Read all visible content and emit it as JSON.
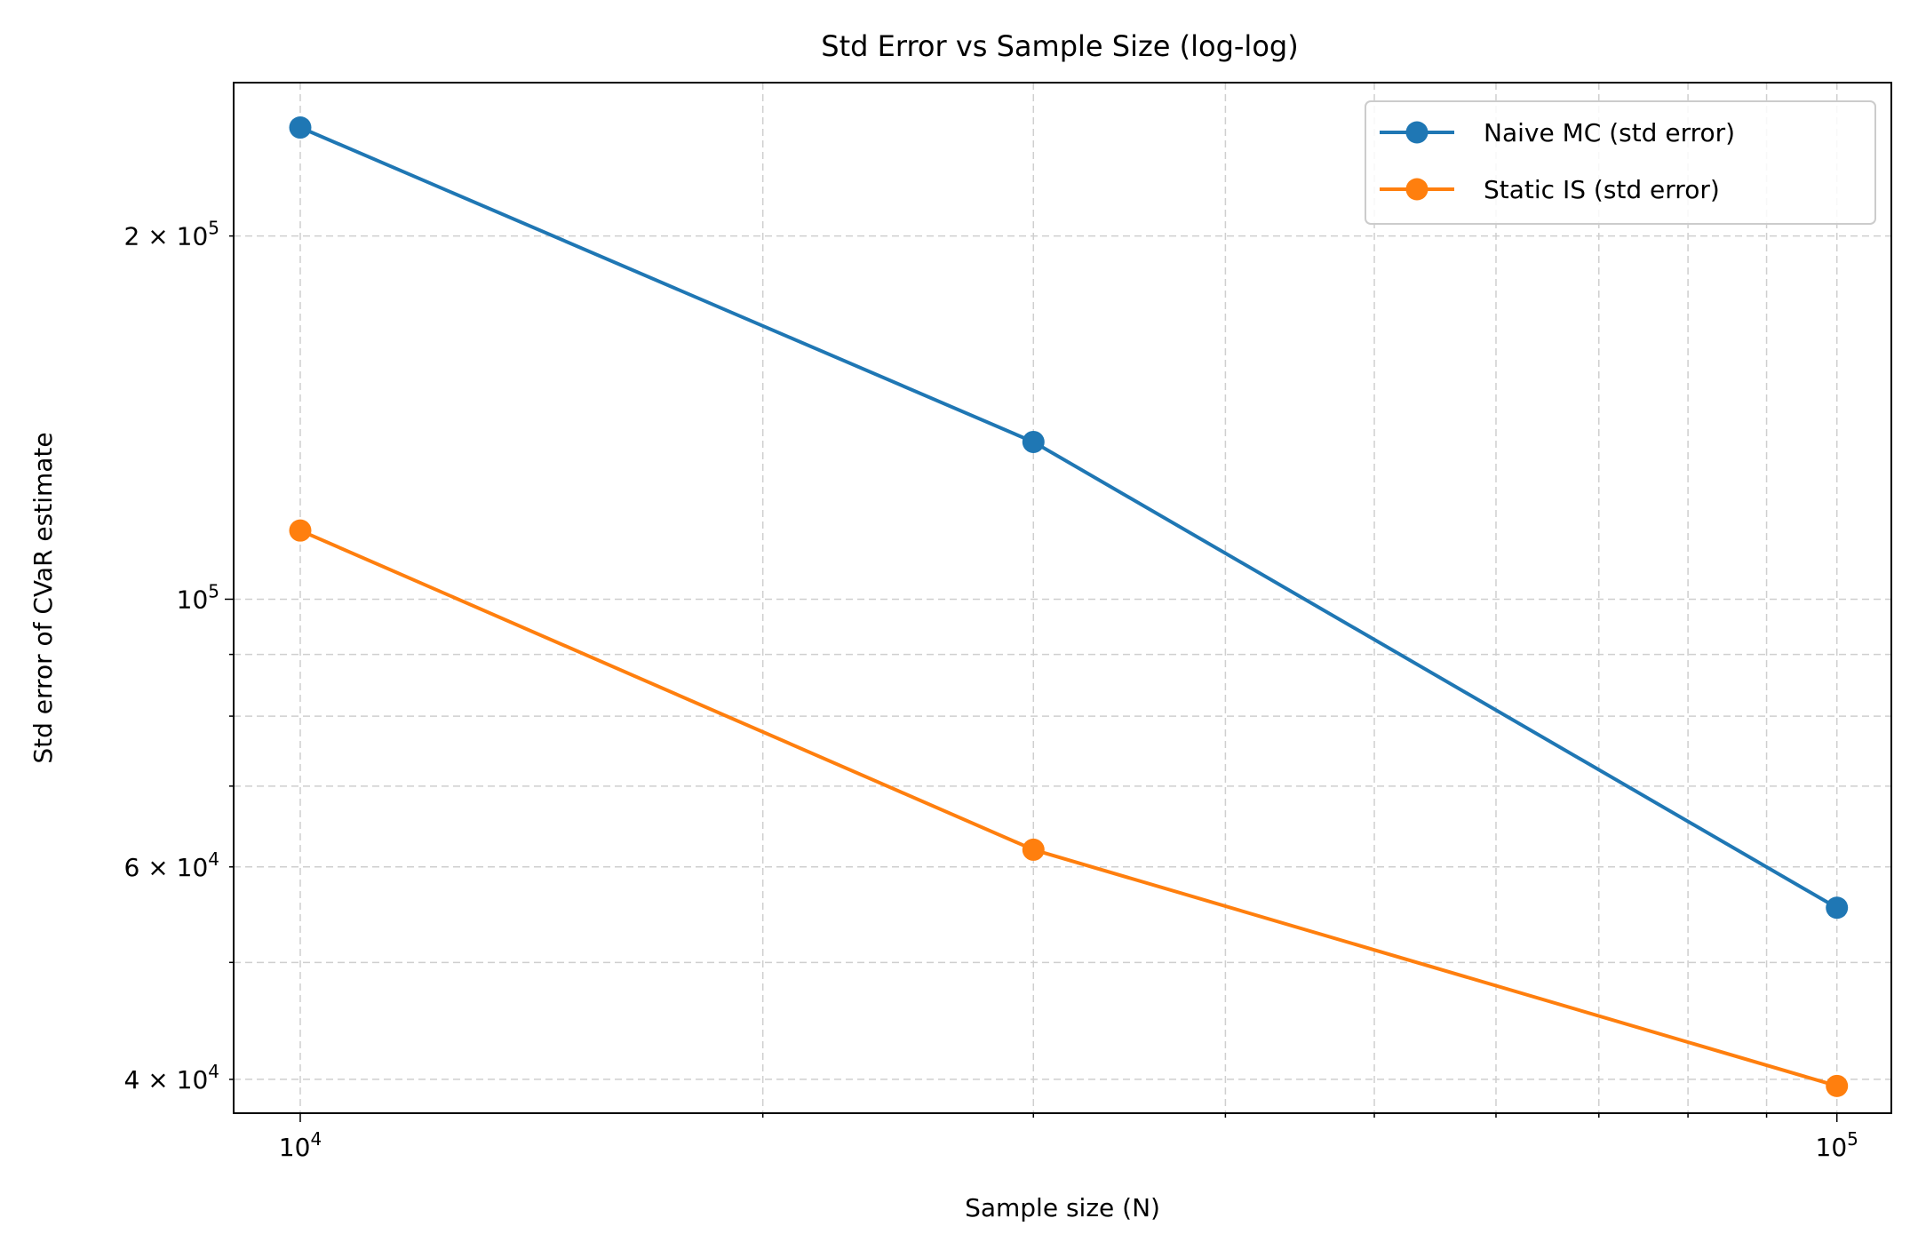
{
  "chart_data": {
    "type": "line",
    "title": "Std Error vs Sample Size (log-log)",
    "xlabel": "Sample size (N)",
    "ylabel": "Std error of CVaR estimate",
    "xscale": "log",
    "yscale": "log",
    "xlim": [
      9050,
      108500
    ],
    "ylim": [
      37500,
      268000
    ],
    "grid": true,
    "legend_position": "top-right",
    "x_ticks": [
      {
        "value": 10000,
        "base": "10",
        "exp": "4"
      },
      {
        "value": 100000,
        "base": "10",
        "exp": "5"
      }
    ],
    "y_ticks": [
      {
        "value": 40000,
        "base": "4 × 10",
        "exp": "4"
      },
      {
        "value": 60000,
        "base": "6 × 10",
        "exp": "4"
      },
      {
        "value": 100000,
        "base": "10",
        "exp": "5"
      },
      {
        "value": 200000,
        "base": "2 × 10",
        "exp": "5"
      }
    ],
    "x": [
      10000,
      30000,
      100000
    ],
    "series": [
      {
        "name": "Naive MC (std error)",
        "color": "#1f77b4",
        "values": [
          246000,
          135000,
          55500
        ]
      },
      {
        "name": "Static IS (std error)",
        "color": "#ff7f0e",
        "values": [
          114000,
          62000,
          39500
        ]
      }
    ]
  }
}
